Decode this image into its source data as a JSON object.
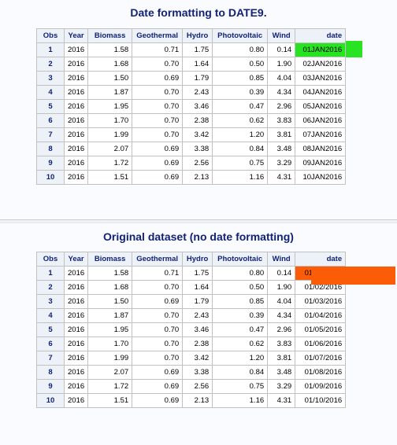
{
  "table1": {
    "title": "Date formatting to DATE9.",
    "headers": [
      "Obs",
      "Year",
      "Biomass",
      "Geothermal",
      "Hydro",
      "Photovoltaic",
      "Wind",
      "date"
    ],
    "rows": [
      [
        "1",
        "2016",
        "1.58",
        "0.71",
        "1.75",
        "0.80",
        "0.14",
        "01JAN2016"
      ],
      [
        "2",
        "2016",
        "1.68",
        "0.70",
        "1.64",
        "0.50",
        "1.90",
        "02JAN2016"
      ],
      [
        "3",
        "2016",
        "1.50",
        "0.69",
        "1.79",
        "0.85",
        "4.04",
        "03JAN2016"
      ],
      [
        "4",
        "2016",
        "1.87",
        "0.70",
        "2.43",
        "0.39",
        "4.34",
        "04JAN2016"
      ],
      [
        "5",
        "2016",
        "1.95",
        "0.70",
        "3.46",
        "0.47",
        "2.96",
        "05JAN2016"
      ],
      [
        "6",
        "2016",
        "1.70",
        "0.70",
        "2.38",
        "0.62",
        "3.83",
        "06JAN2016"
      ],
      [
        "7",
        "2016",
        "1.99",
        "0.70",
        "3.42",
        "1.20",
        "3.81",
        "07JAN2016"
      ],
      [
        "8",
        "2016",
        "2.07",
        "0.69",
        "3.38",
        "0.84",
        "3.48",
        "08JAN2016"
      ],
      [
        "9",
        "2016",
        "1.72",
        "0.69",
        "2.56",
        "0.75",
        "3.29",
        "09JAN2016"
      ],
      [
        "10",
        "2016",
        "1.51",
        "0.69",
        "2.13",
        "1.16",
        "4.31",
        "10JAN2016"
      ]
    ],
    "highlight_color": "#27e322"
  },
  "table2": {
    "title": "Original dataset (no date formatting)",
    "headers": [
      "Obs",
      "Year",
      "Biomass",
      "Geothermal",
      "Hydro",
      "Photovoltaic",
      "Wind",
      "date"
    ],
    "rows": [
      [
        "1",
        "2016",
        "1.58",
        "0.71",
        "1.75",
        "0.80",
        "0.14",
        "01/01/2016"
      ],
      [
        "2",
        "2016",
        "1.68",
        "0.70",
        "1.64",
        "0.50",
        "1.90",
        "01/02/2016"
      ],
      [
        "3",
        "2016",
        "1.50",
        "0.69",
        "1.79",
        "0.85",
        "4.04",
        "01/03/2016"
      ],
      [
        "4",
        "2016",
        "1.87",
        "0.70",
        "2.43",
        "0.39",
        "4.34",
        "01/04/2016"
      ],
      [
        "5",
        "2016",
        "1.95",
        "0.70",
        "3.46",
        "0.47",
        "2.96",
        "01/05/2016"
      ],
      [
        "6",
        "2016",
        "1.70",
        "0.70",
        "2.38",
        "0.62",
        "3.83",
        "01/06/2016"
      ],
      [
        "7",
        "2016",
        "1.99",
        "0.70",
        "3.42",
        "1.20",
        "3.81",
        "01/07/2016"
      ],
      [
        "8",
        "2016",
        "2.07",
        "0.69",
        "3.38",
        "0.84",
        "3.48",
        "01/08/2016"
      ],
      [
        "9",
        "2016",
        "1.72",
        "0.69",
        "2.56",
        "0.75",
        "3.29",
        "01/09/2016"
      ],
      [
        "10",
        "2016",
        "1.51",
        "0.69",
        "2.13",
        "1.16",
        "4.31",
        "01/10/2016"
      ]
    ],
    "highlight_color": "#fb5c08"
  },
  "colors": {
    "title": "#112277",
    "header_bg": "#edf2f9",
    "border": "#c1c1c1"
  }
}
